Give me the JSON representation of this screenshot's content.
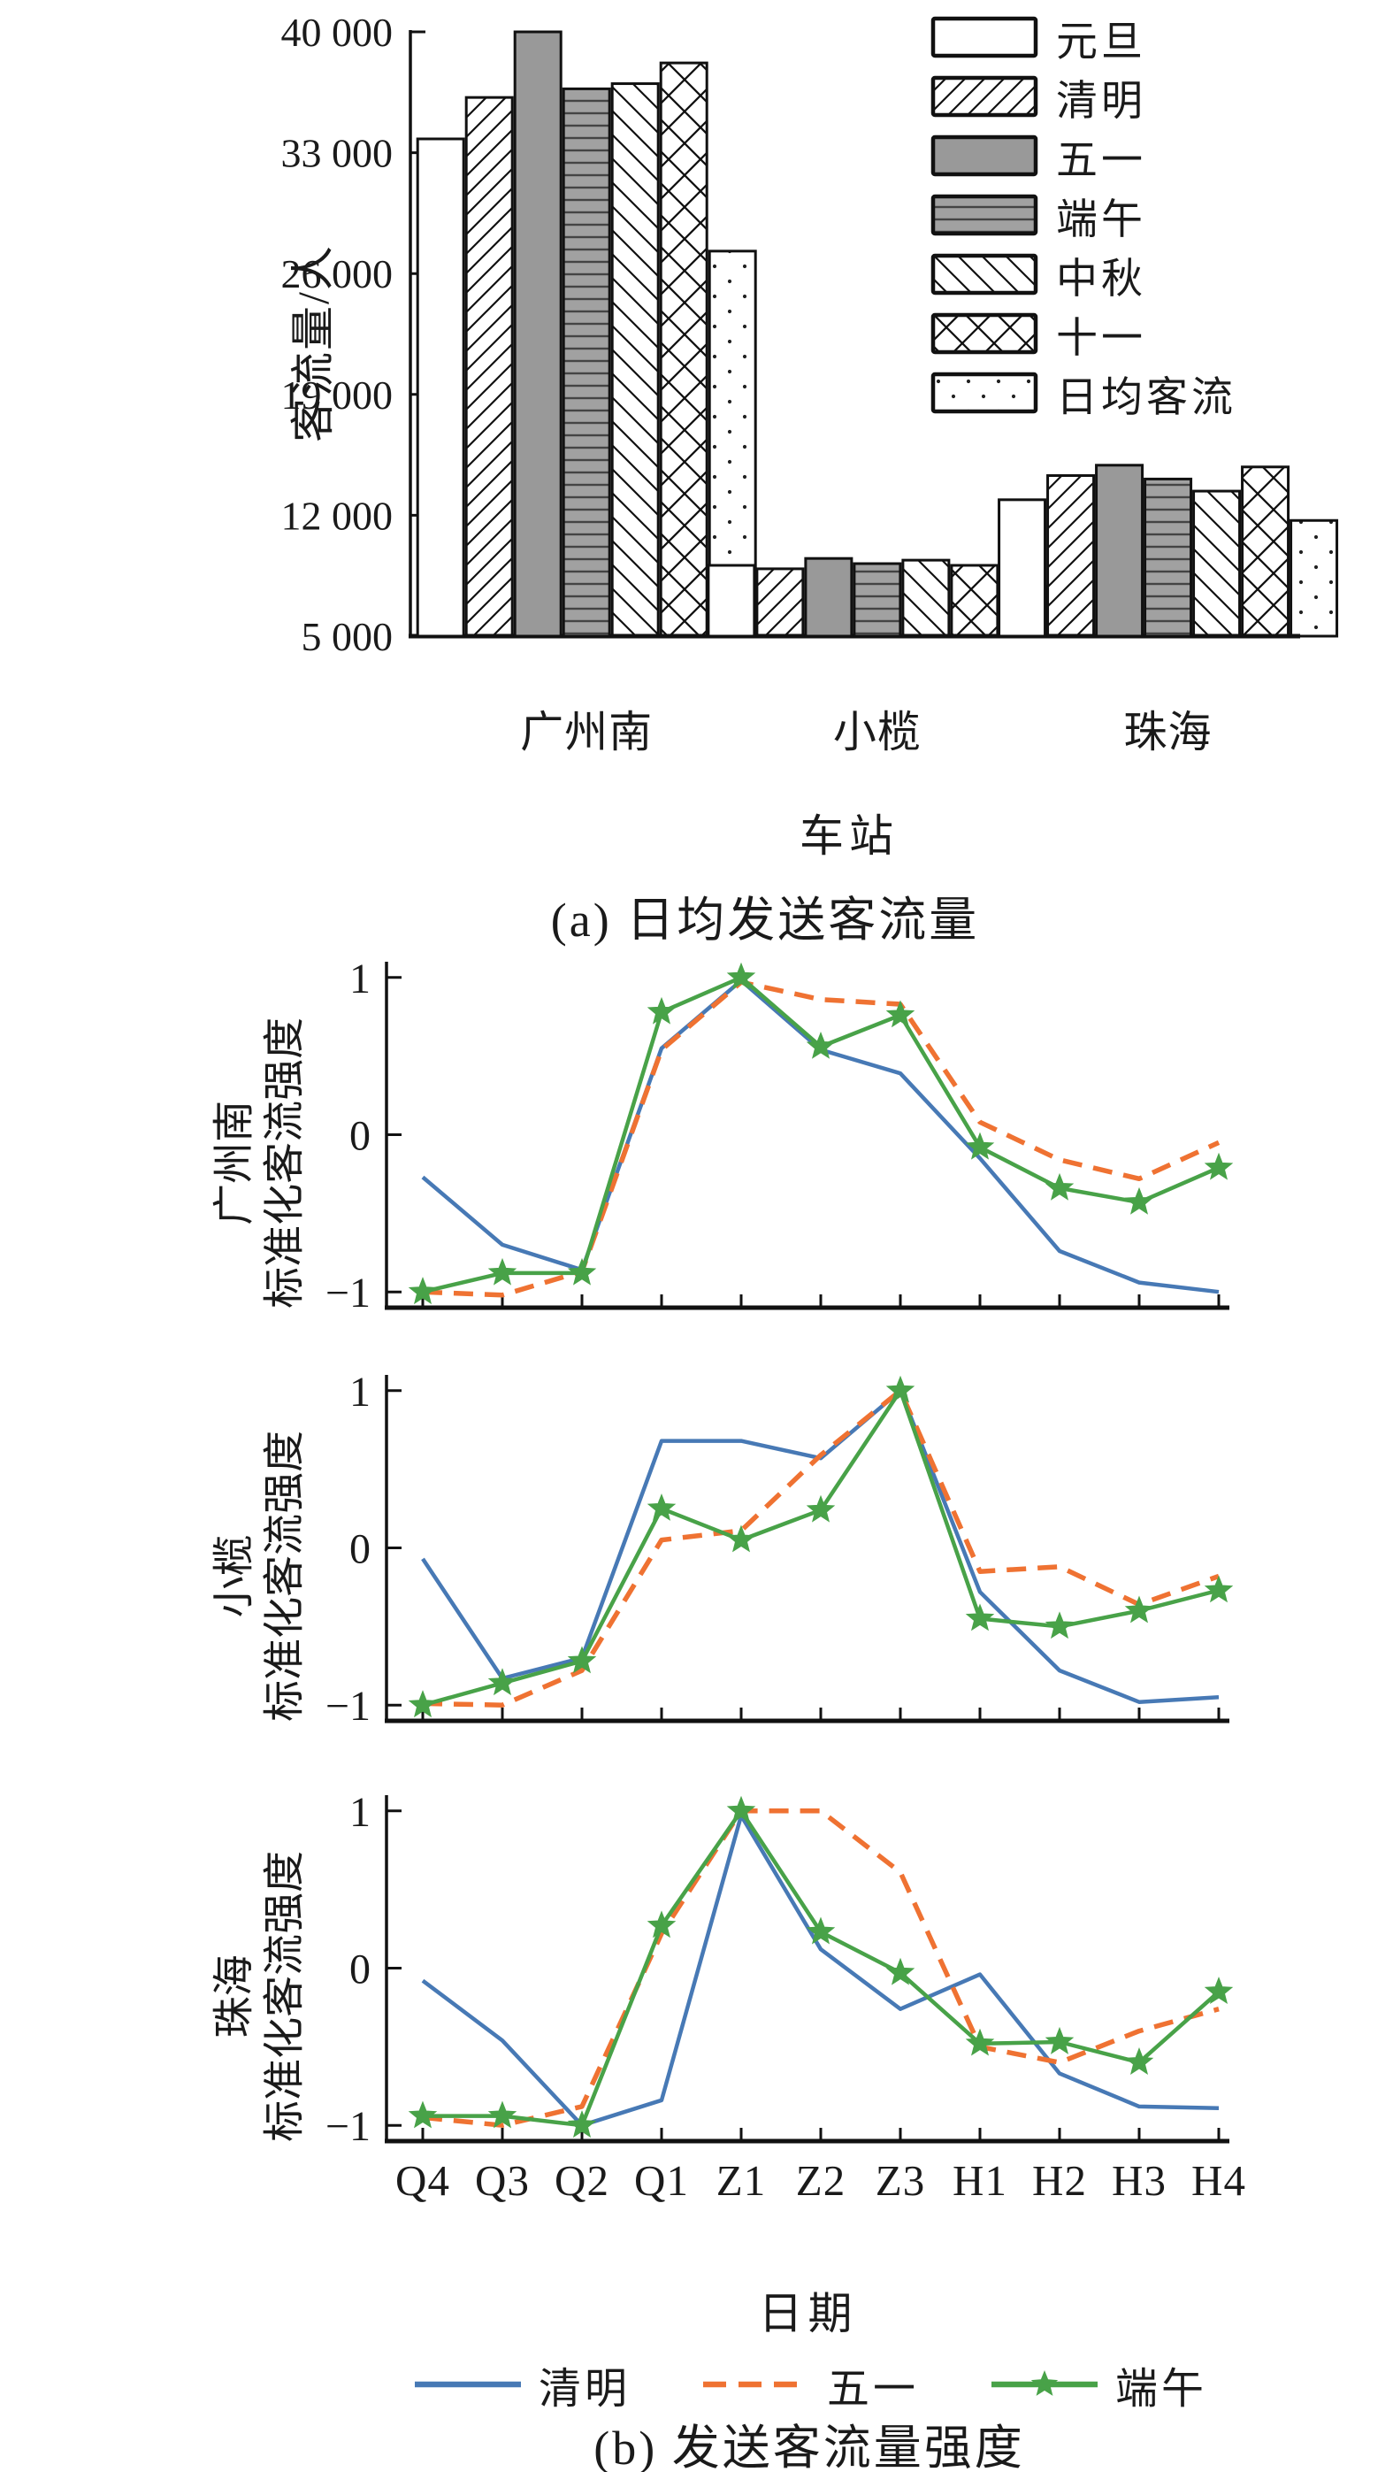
{
  "figure": {
    "caption_a": "(a) 日均发送客流量",
    "caption_b": "(b) 发送客流量强度",
    "xlabel_a": "车站",
    "xlabel_b": "日期",
    "ylabel_a": "客流量/人",
    "ylabel_sub_suffix": "标准化客流强度"
  },
  "colors": {
    "blue": "#4779B5",
    "orange": "#EF7232",
    "green": "#48A248",
    "bar_gray": "#999999",
    "stripe_gray_fill": "#A1A1A1",
    "stripe_line": "#444444",
    "ink": "#111111"
  },
  "chart_data": [
    {
      "type": "bar",
      "title": "(a) 日均发送客流量",
      "xlabel": "车站",
      "ylabel": "客流量/人",
      "categories": [
        "广州南",
        "小榄",
        "珠海"
      ],
      "ylim": [
        5000,
        40000
      ],
      "ytick_values": [
        5000,
        12000,
        19000,
        26000,
        33000,
        40000
      ],
      "ytick_labels": [
        "5 000",
        "12 000",
        "19 000",
        "26 000",
        "33 000",
        "40 000"
      ],
      "grid": false,
      "legend_position": "top-right",
      "series": [
        {
          "name": "元旦",
          "pattern": "plain",
          "values": [
            33800,
            9100,
            12900
          ]
        },
        {
          "name": "清明",
          "pattern": "hatch-fwd",
          "values": [
            36200,
            8900,
            14300
          ]
        },
        {
          "name": "五一",
          "pattern": "solid-gray",
          "values": [
            40000,
            9500,
            14900
          ]
        },
        {
          "name": "端午",
          "pattern": "gray-hlines",
          "values": [
            36700,
            9200,
            14100
          ]
        },
        {
          "name": "中秋",
          "pattern": "hatch-back",
          "values": [
            37000,
            9400,
            13400
          ]
        },
        {
          "name": "十一",
          "pattern": "crosshatch",
          "values": [
            38200,
            9100,
            14800
          ]
        },
        {
          "name": "日均客流",
          "pattern": "dots",
          "values": [
            27300,
            7900,
            11700
          ]
        }
      ]
    },
    {
      "type": "line",
      "station": "广州南",
      "ylabel_line1": "广州南",
      "ylabel_line2": "标准化客流强度",
      "x": [
        "Q4",
        "Q3",
        "Q2",
        "Q1",
        "Z1",
        "Z2",
        "Z3",
        "H1",
        "H2",
        "H3",
        "H4"
      ],
      "ylim": [
        -1.1,
        1.1
      ],
      "ytick_values": [
        1,
        0,
        -1
      ],
      "ytick_labels": [
        "1",
        "0",
        "−1"
      ],
      "series": [
        {
          "name": "清明",
          "style": "solid-blue",
          "values": [
            -0.27,
            -0.7,
            -0.86,
            0.55,
            0.98,
            0.54,
            0.39,
            -0.15,
            -0.74,
            -0.94,
            -1.0
          ]
        },
        {
          "name": "五一",
          "style": "dashed-orange",
          "values": [
            -1.0,
            -1.02,
            -0.87,
            0.54,
            0.97,
            0.86,
            0.83,
            0.08,
            -0.16,
            -0.28,
            -0.05
          ]
        },
        {
          "name": "端午",
          "style": "solid-green-star",
          "values": [
            -1.0,
            -0.88,
            -0.88,
            0.78,
            1.0,
            0.56,
            0.76,
            -0.08,
            -0.34,
            -0.43,
            -0.21
          ]
        }
      ]
    },
    {
      "type": "line",
      "station": "小榄",
      "ylabel_line1": "小榄",
      "ylabel_line2": "标准化客流强度",
      "x": [
        "Q4",
        "Q3",
        "Q2",
        "Q1",
        "Z1",
        "Z2",
        "Z3",
        "H1",
        "H2",
        "H3",
        "H4"
      ],
      "ylim": [
        -1.1,
        1.1
      ],
      "ytick_values": [
        1,
        0,
        -1
      ],
      "ytick_labels": [
        "1",
        "0",
        "−1"
      ],
      "series": [
        {
          "name": "清明",
          "style": "solid-blue",
          "values": [
            -0.07,
            -0.83,
            -0.7,
            0.68,
            0.68,
            0.57,
            1.0,
            -0.28,
            -0.78,
            -0.98,
            -0.95
          ]
        },
        {
          "name": "五一",
          "style": "dashed-orange",
          "values": [
            -0.99,
            -1.0,
            -0.78,
            0.05,
            0.11,
            0.59,
            1.0,
            -0.15,
            -0.12,
            -0.36,
            -0.18
          ]
        },
        {
          "name": "端午",
          "style": "solid-green-star",
          "values": [
            -1.0,
            -0.86,
            -0.72,
            0.25,
            0.05,
            0.24,
            1.0,
            -0.45,
            -0.5,
            -0.4,
            -0.27
          ]
        }
      ]
    },
    {
      "type": "line",
      "station": "珠海",
      "ylabel_line1": "珠海",
      "ylabel_line2": "标准化客流强度",
      "x": [
        "Q4",
        "Q3",
        "Q2",
        "Q1",
        "Z1",
        "Z2",
        "Z3",
        "H1",
        "H2",
        "H3",
        "H4"
      ],
      "ylim": [
        -1.1,
        1.1
      ],
      "ytick_values": [
        1,
        0,
        -1
      ],
      "ytick_labels": [
        "1",
        "0",
        "−1"
      ],
      "series": [
        {
          "name": "清明",
          "style": "solid-blue",
          "values": [
            -0.08,
            -0.46,
            -1.0,
            -0.84,
            0.97,
            0.12,
            -0.26,
            -0.04,
            -0.67,
            -0.88,
            -0.89
          ]
        },
        {
          "name": "五一",
          "style": "dashed-orange",
          "values": [
            -0.95,
            -1.0,
            -0.88,
            0.22,
            1.0,
            1.0,
            0.61,
            -0.5,
            -0.6,
            -0.4,
            -0.26
          ]
        },
        {
          "name": "端午",
          "style": "solid-green-star",
          "values": [
            -0.94,
            -0.94,
            -1.0,
            0.27,
            1.0,
            0.23,
            -0.03,
            -0.48,
            -0.47,
            -0.6,
            -0.15
          ]
        }
      ]
    }
  ],
  "legend_b": [
    "清明",
    "五一",
    "端午"
  ]
}
